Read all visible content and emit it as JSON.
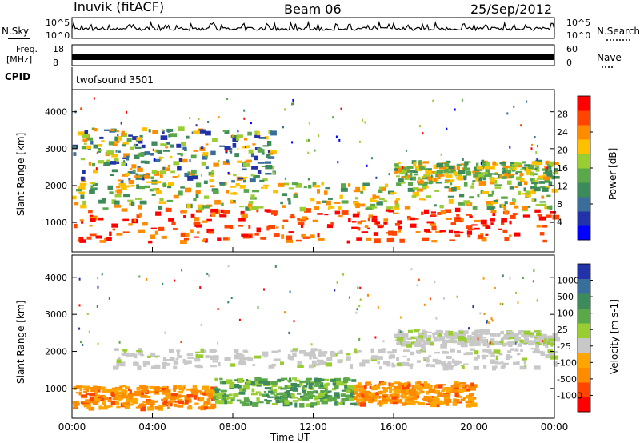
{
  "header": {
    "station": "Inuvik (fitACF)",
    "beam": "Beam 06",
    "date": "25/Sep/2012"
  },
  "top_panels": {
    "nsky_label": "N.Sky",
    "nsearch_label": "N.Search",
    "nsky_ticks": [
      "10^5",
      "10^0"
    ],
    "nsearch_ticks": [
      "10^5",
      "10^0"
    ],
    "freq_label": "Freq.",
    "freq_unit": "[MHz]",
    "freq_ticks": [
      "18",
      "8"
    ],
    "nave_label": "Nave",
    "nave_ticks": [
      "60",
      "0"
    ],
    "cpid_label": "CPID",
    "cpid_value": "twofsound 3501"
  },
  "chart_data": [
    {
      "type": "heatmap",
      "name": "power",
      "ylabel": "Slant Range [km]",
      "xlabel": "Time UT",
      "x_ticks": [
        "00:00",
        "04:00",
        "08:00",
        "12:00",
        "16:00",
        "20:00",
        "00:00"
      ],
      "y_ticks": [
        1000,
        2000,
        3000,
        4000
      ],
      "xlim_hours": [
        0,
        24
      ],
      "ylim_km": [
        200,
        4600
      ],
      "colorbar": {
        "label": "Power [dB]",
        "ticks": [
          "28",
          "24",
          "20",
          "16",
          "12",
          "8",
          "4"
        ],
        "colors": [
          "#0000ff",
          "#2233aa",
          "#3a6e9a",
          "#3d8a5a",
          "#5aa84a",
          "#9acd32",
          "#ffc000",
          "#ff8c00",
          "#ff4500",
          "#ff0000"
        ]
      },
      "bands": [
        {
          "t0": 0,
          "t1": 24,
          "r0": 500,
          "r1": 1400,
          "value": "high"
        },
        {
          "t0": 0,
          "t1": 24,
          "r0": 1400,
          "r1": 2100,
          "value": "mid"
        },
        {
          "t0": 0,
          "t1": 10,
          "r0": 2100,
          "r1": 3600,
          "value": "mixed"
        },
        {
          "t0": 16,
          "t1": 24,
          "r0": 2100,
          "r1": 2700,
          "value": "mid"
        }
      ]
    },
    {
      "type": "heatmap",
      "name": "velocity",
      "ylabel": "Slant Range [km]",
      "xlabel": "Time UT",
      "x_ticks": [
        "00:00",
        "04:00",
        "08:00",
        "12:00",
        "16:00",
        "20:00",
        "00:00"
      ],
      "y_ticks": [
        1000,
        2000,
        3000,
        4000
      ],
      "xlim_hours": [
        0,
        24
      ],
      "ylim_km": [
        200,
        4600
      ],
      "colorbar": {
        "label": "Velocity [m s-1]",
        "ticks": [
          "1000",
          "500",
          "100",
          "25",
          "-25",
          "-100",
          "-500",
          "-1000"
        ],
        "colors": [
          "#ff0000",
          "#ff4500",
          "#ff8c00",
          "#ffa500",
          "#c8c8c8",
          "#9acd32",
          "#5aa84a",
          "#3d8a5a",
          "#3a6e9a",
          "#2233aa"
        ]
      },
      "bands": [
        {
          "t0": 0,
          "t1": 7,
          "r0": 500,
          "r1": 1100,
          "value": "orange"
        },
        {
          "t0": 7,
          "t1": 14,
          "r0": 600,
          "r1": 1300,
          "value": "green"
        },
        {
          "t0": 2,
          "t1": 24,
          "r0": 1600,
          "r1": 2100,
          "value": "grey"
        },
        {
          "t0": 14,
          "t1": 20,
          "r0": 600,
          "r1": 1200,
          "value": "orange"
        },
        {
          "t0": 16,
          "t1": 24,
          "r0": 2200,
          "r1": 2600,
          "value": "grey"
        }
      ]
    }
  ]
}
